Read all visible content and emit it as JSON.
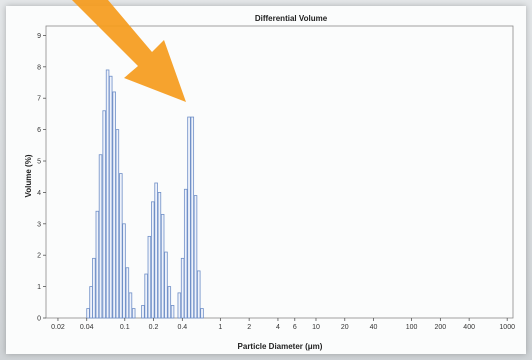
{
  "chart_data": {
    "type": "bar",
    "title": "Differential Volume",
    "xlabel": "Particle Diameter (μm)",
    "ylabel": "Volume (%)",
    "x_scale": "log",
    "xlim": [
      0.015,
      1150
    ],
    "ylim": [
      0,
      9.3
    ],
    "x_ticks": [
      {
        "value": 0.02,
        "label": "0.02"
      },
      {
        "value": 0.04,
        "label": "0.04"
      },
      {
        "value": 0.1,
        "label": "0.1"
      },
      {
        "value": 0.2,
        "label": "0.2"
      },
      {
        "value": 0.4,
        "label": "0.4"
      },
      {
        "value": 1,
        "label": "1"
      },
      {
        "value": 2,
        "label": "2"
      },
      {
        "value": 4,
        "label": "4"
      },
      {
        "value": 6,
        "label": "6"
      },
      {
        "value": 10,
        "label": "10"
      },
      {
        "value": 20,
        "label": "20"
      },
      {
        "value": 40,
        "label": "40"
      },
      {
        "value": 100,
        "label": "100"
      },
      {
        "value": 200,
        "label": "200"
      },
      {
        "value": 400,
        "label": "400"
      },
      {
        "value": 1000,
        "label": "1000"
      }
    ],
    "y_ticks": [
      0,
      1,
      2,
      3,
      4,
      5,
      6,
      7,
      8,
      9
    ],
    "grid": false,
    "bar_color": "#6f8fc7",
    "bar_fill": "#eef2fb",
    "bars": [
      {
        "x": 0.04,
        "y": 0.3
      },
      {
        "x": 0.043,
        "y": 1.0
      },
      {
        "x": 0.046,
        "y": 1.9
      },
      {
        "x": 0.05,
        "y": 3.4
      },
      {
        "x": 0.054,
        "y": 5.2
      },
      {
        "x": 0.059,
        "y": 6.6
      },
      {
        "x": 0.064,
        "y": 7.9
      },
      {
        "x": 0.069,
        "y": 7.7
      },
      {
        "x": 0.075,
        "y": 7.2
      },
      {
        "x": 0.081,
        "y": 6.0
      },
      {
        "x": 0.088,
        "y": 4.6
      },
      {
        "x": 0.095,
        "y": 3.0
      },
      {
        "x": 0.103,
        "y": 1.6
      },
      {
        "x": 0.111,
        "y": 0.8
      },
      {
        "x": 0.12,
        "y": 0.3
      },
      {
        "x": 0.15,
        "y": 0.4
      },
      {
        "x": 0.162,
        "y": 1.4
      },
      {
        "x": 0.175,
        "y": 2.6
      },
      {
        "x": 0.19,
        "y": 3.7
      },
      {
        "x": 0.206,
        "y": 4.3
      },
      {
        "x": 0.223,
        "y": 4.0
      },
      {
        "x": 0.241,
        "y": 3.3
      },
      {
        "x": 0.261,
        "y": 2.1
      },
      {
        "x": 0.283,
        "y": 1.0
      },
      {
        "x": 0.306,
        "y": 0.4
      },
      {
        "x": 0.36,
        "y": 0.8
      },
      {
        "x": 0.39,
        "y": 1.9
      },
      {
        "x": 0.42,
        "y": 4.1
      },
      {
        "x": 0.455,
        "y": 6.4
      },
      {
        "x": 0.492,
        "y": 6.4
      },
      {
        "x": 0.532,
        "y": 3.9
      },
      {
        "x": 0.575,
        "y": 1.5
      },
      {
        "x": 0.622,
        "y": 0.3
      }
    ],
    "annotation": {
      "type": "arrow",
      "color": "#f59b1c",
      "direction": "down-right"
    }
  }
}
